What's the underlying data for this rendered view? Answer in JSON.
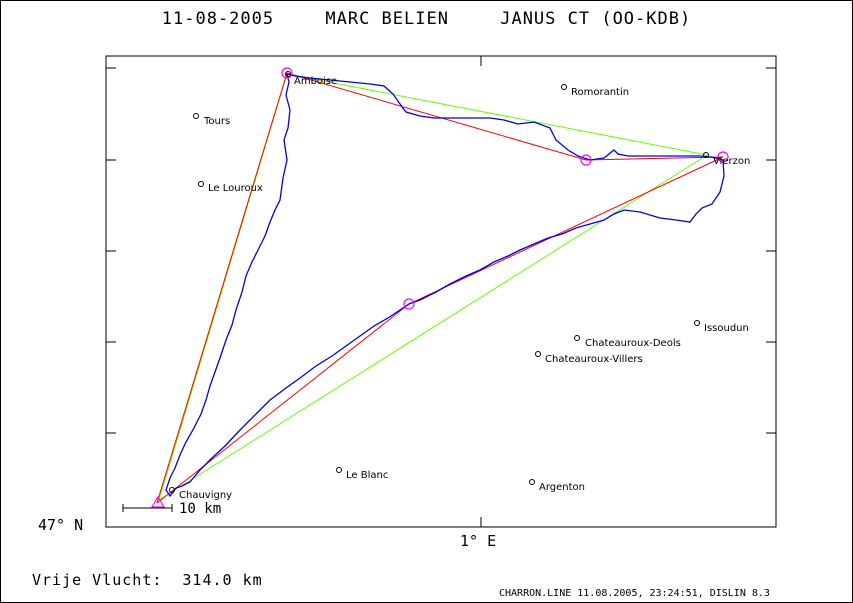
{
  "header": {
    "date": "11-08-2005",
    "pilot": "MARC BELIEN",
    "glider": "JANUS CT (OO-KDB)"
  },
  "axes": {
    "lat_label": "47° N",
    "lon_label": "1° E"
  },
  "scale": {
    "label": "10 km"
  },
  "summary": {
    "label": "Vrije Vlucht:",
    "distance": "314.0 km"
  },
  "footer": "CHARRON.LINE 11.08.2005, 23:24:51, DISLIN 8.3",
  "towns": [
    {
      "name": "Amboise"
    },
    {
      "name": "Romorantin"
    },
    {
      "name": "Tours"
    },
    {
      "name": "Vierzon"
    },
    {
      "name": "Le Louroux"
    },
    {
      "name": "Issoudun"
    },
    {
      "name": "Chateauroux-Deols"
    },
    {
      "name": "Chateauroux-Villers"
    },
    {
      "name": "Le Blanc"
    },
    {
      "name": "Argenton"
    },
    {
      "name": "Chauvigny"
    }
  ],
  "colors": {
    "track": "#0000e6",
    "optimized_route": "#ff0000",
    "declared_route": "#66ff00",
    "turnpoint": "#ff00ff"
  }
}
